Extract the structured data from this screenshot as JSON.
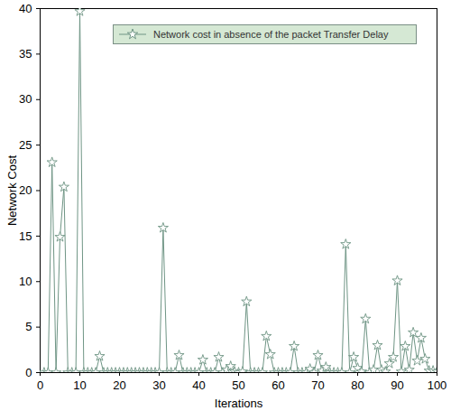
{
  "chart_data": {
    "type": "line",
    "x_label": "Iterations",
    "y_label": "Network Cost",
    "x": [
      1,
      2,
      3,
      4,
      5,
      6,
      7,
      8,
      9,
      10,
      11,
      12,
      13,
      14,
      15,
      16,
      17,
      18,
      19,
      20,
      21,
      22,
      23,
      24,
      25,
      26,
      27,
      28,
      29,
      30,
      31,
      32,
      33,
      34,
      35,
      36,
      37,
      38,
      39,
      40,
      41,
      42,
      43,
      44,
      45,
      46,
      47,
      48,
      49,
      50,
      51,
      52,
      53,
      54,
      55,
      56,
      57,
      58,
      59,
      60,
      61,
      62,
      63,
      64,
      65,
      66,
      67,
      68,
      69,
      70,
      71,
      72,
      73,
      74,
      75,
      76,
      77,
      78,
      79,
      80,
      81,
      82,
      83,
      84,
      85,
      86,
      87,
      88,
      89,
      90,
      91,
      92,
      93,
      94,
      95,
      96,
      97,
      98,
      99,
      100
    ],
    "series": [
      {
        "name": "Network cost in absence of the packet Transfer Delay",
        "color": "#6f9585",
        "marker": "star",
        "line_style": "solid",
        "values": [
          0,
          0,
          23.1,
          0,
          14.9,
          20.4,
          0,
          0,
          0,
          39.7,
          0,
          0,
          0,
          0,
          1.8,
          0,
          0,
          0,
          0,
          0,
          0,
          0,
          0,
          0,
          0,
          0,
          0,
          0,
          0,
          0,
          15.9,
          0,
          0,
          0,
          1.9,
          0,
          0,
          0,
          0,
          0,
          1.4,
          0,
          0,
          0,
          1.7,
          0,
          0.3,
          0.7,
          0.1,
          0,
          0.1,
          7.8,
          0,
          0,
          0,
          0,
          4.0,
          2.0,
          0,
          0,
          0,
          0,
          0,
          2.9,
          0,
          0,
          0,
          0.4,
          0,
          1.9,
          0.2,
          0.6,
          0,
          0,
          0,
          0,
          14.1,
          0,
          1.7,
          0.5,
          0.1,
          5.9,
          0,
          0.3,
          3.0,
          0.3,
          0.1,
          1.0,
          1.7,
          10.1,
          0.1,
          2.9,
          0.3,
          4.4,
          1.3,
          3.8,
          1.5,
          0.2,
          0.2,
          0.1
        ]
      }
    ],
    "xlim": [
      0,
      100
    ],
    "xticks": [
      0,
      10,
      20,
      30,
      40,
      50,
      60,
      70,
      80,
      90,
      100
    ],
    "ylim": [
      0,
      40
    ],
    "yticks": [
      0,
      5,
      10,
      15,
      20,
      25,
      30,
      35,
      40
    ],
    "legend": "top"
  }
}
